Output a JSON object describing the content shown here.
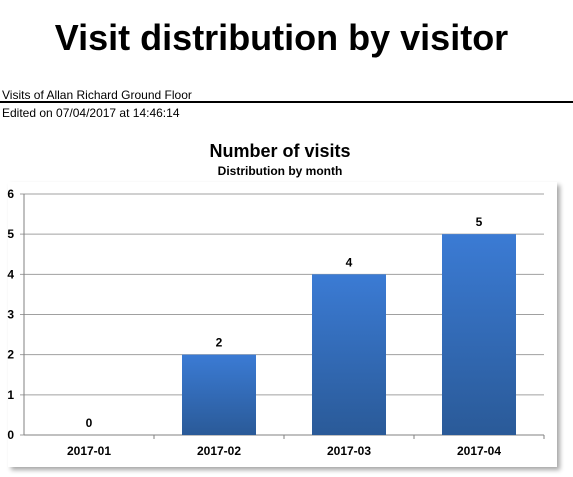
{
  "report": {
    "title": "Visit distribution by visitor",
    "subtitle": "Visits of Allan Richard Ground Floor",
    "edited": "Edited on 07/04/2017 at 14:46:14"
  },
  "colors": {
    "bar_top": "#3b7bd4",
    "bar_bottom": "#2a5a98",
    "grid": "#a0a0a0",
    "frame_shadow": "#c8c8c8"
  },
  "chart_data": {
    "type": "bar",
    "title": "Number of visits",
    "subtitle": "Distribution by month",
    "categories": [
      "2017-01",
      "2017-02",
      "2017-03",
      "2017-04"
    ],
    "values": [
      0,
      2,
      4,
      5
    ],
    "data_labels": [
      "0",
      "2",
      "4",
      "5"
    ],
    "ylim": [
      0,
      6
    ],
    "yticks": [
      "0",
      "1",
      "2",
      "3",
      "4",
      "5",
      "6"
    ],
    "grid": true,
    "legend": "none"
  }
}
